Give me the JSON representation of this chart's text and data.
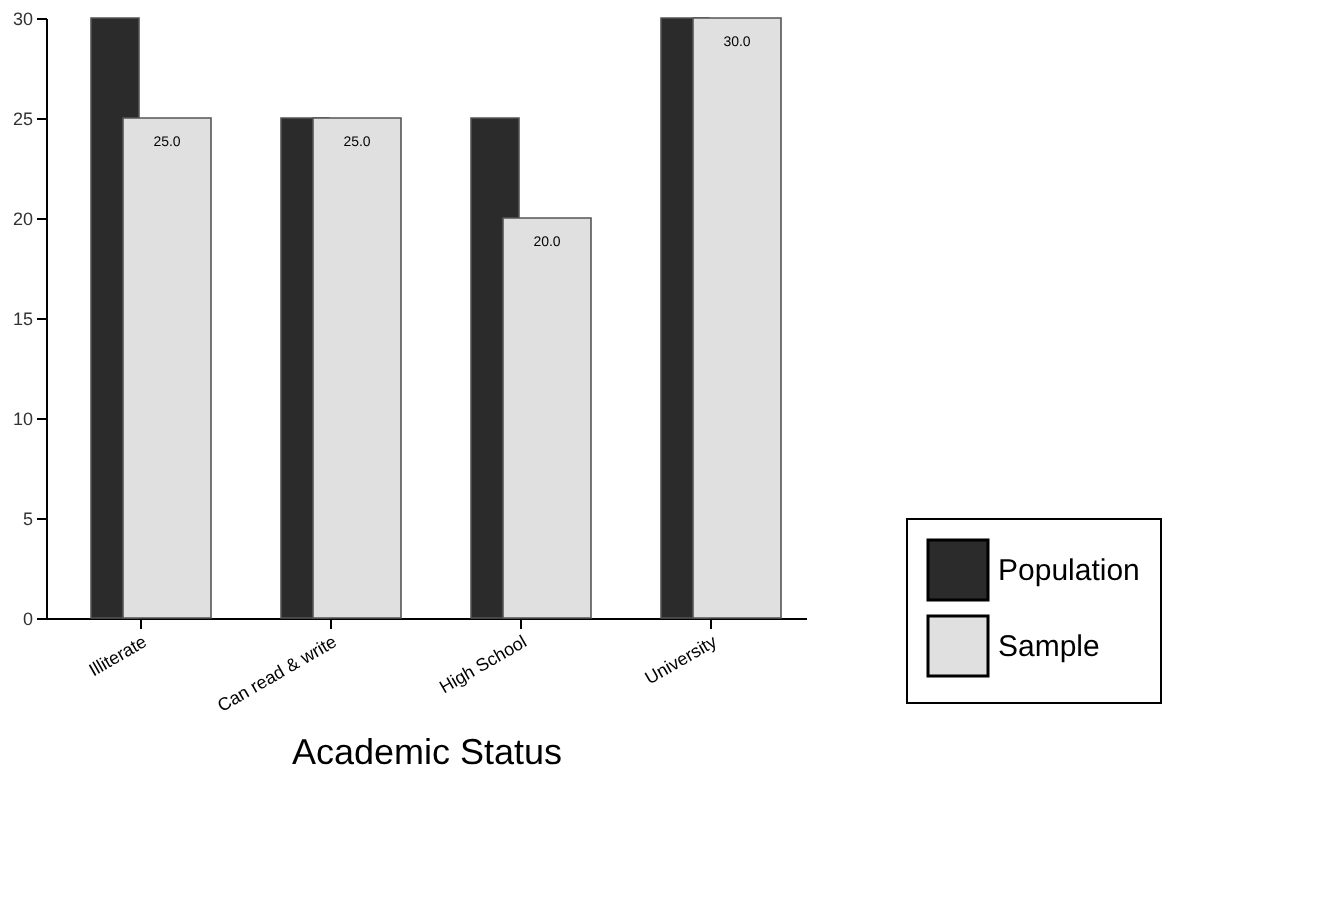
{
  "chart_data": {
    "type": "bar",
    "xlabel": "Academic Status",
    "categories": [
      "Illiterate",
      "Can read & write",
      "High School",
      "University"
    ],
    "series": [
      {
        "name": "Population",
        "color": "#2b2b2b",
        "values": [
          30,
          25,
          25,
          30
        ]
      },
      {
        "name": "Sample",
        "color": "#e0e0e0",
        "values": [
          25,
          25,
          20,
          30
        ],
        "value_labels": [
          "25.0",
          "25.0",
          "20.0",
          "30.0"
        ]
      }
    ],
    "ylim": [
      0,
      30
    ],
    "yticks": [
      0,
      5,
      10,
      15,
      20,
      25,
      30
    ],
    "grid": false,
    "legend": "right"
  }
}
